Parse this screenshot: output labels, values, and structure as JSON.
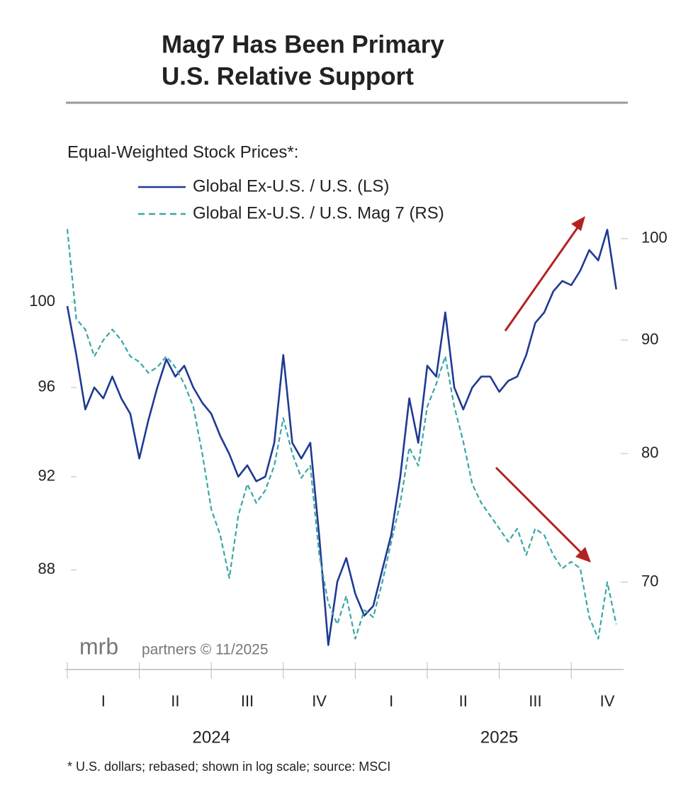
{
  "chart_data": {
    "type": "line",
    "title": [
      "Mag7 Has Been Primary",
      "U.S. Relative Support"
    ],
    "legend_title": "Equal-Weighted Stock Prices*:",
    "log_scale": true,
    "quarters": [
      "I",
      "II",
      "III",
      "IV",
      "I",
      "II",
      "III",
      "IV"
    ],
    "years": [
      "2024",
      "2025"
    ],
    "ylim": [
      84.2,
      104
    ],
    "yticks": [
      88,
      92,
      96,
      100
    ],
    "y2lim": [
      64.4,
      102
    ],
    "y2ticks": [
      70,
      80,
      90,
      100
    ],
    "series": [
      {
        "name": "Global Ex-U.S. / U.S. (LS)",
        "color": "#1f3a93",
        "axis": "y",
        "values": [
          99.8,
          97.5,
          95.0,
          96.0,
          95.5,
          96.5,
          95.5,
          94.8,
          92.8,
          94.5,
          96.0,
          97.3,
          96.5,
          97.0,
          96.0,
          95.3,
          94.8,
          93.8,
          93.0,
          92.0,
          92.5,
          91.8,
          92.0,
          93.5,
          97.5,
          93.5,
          92.8,
          93.5,
          89.4,
          84.9,
          87.5,
          88.5,
          87.0,
          86.1,
          86.5,
          88.0,
          89.5,
          92.0,
          95.5,
          93.5,
          97.0,
          96.5,
          99.5,
          96.0,
          95.0,
          96.0,
          96.5,
          96.5,
          95.8,
          96.3,
          96.5,
          97.5,
          99.0,
          99.5,
          100.5,
          101.0,
          100.8,
          101.5,
          102.5,
          102.0,
          103.5,
          100.6
        ]
      },
      {
        "name": "Global Ex-U.S. / U.S. Mag 7 (RS)",
        "color": "#3aa6a6",
        "axis": "y2",
        "values": [
          101.0,
          92.0,
          91.0,
          88.5,
          90.0,
          91.0,
          90.0,
          88.5,
          88.0,
          87.0,
          87.5,
          88.5,
          87.5,
          86.0,
          84.0,
          80.0,
          75.5,
          73.5,
          70.3,
          75.0,
          77.5,
          76.0,
          77.0,
          79.0,
          83.0,
          80.0,
          78.0,
          79.0,
          72.0,
          68.5,
          67.0,
          69.0,
          66.0,
          68.0,
          67.5,
          70.0,
          73.0,
          76.0,
          80.5,
          79.0,
          84.0,
          86.0,
          88.5,
          84.0,
          81.0,
          77.5,
          76.0,
          75.0,
          74.0,
          73.0,
          74.0,
          72.0,
          74.0,
          73.5,
          72.0,
          71.0,
          71.5,
          71.0,
          67.5,
          66.0,
          70.0,
          67.0
        ]
      }
    ],
    "brand": "mrb",
    "credit": "partners © 11/2025",
    "footnote": "* U.S. dollars; rebased; shown in log scale; source: MSCI"
  }
}
